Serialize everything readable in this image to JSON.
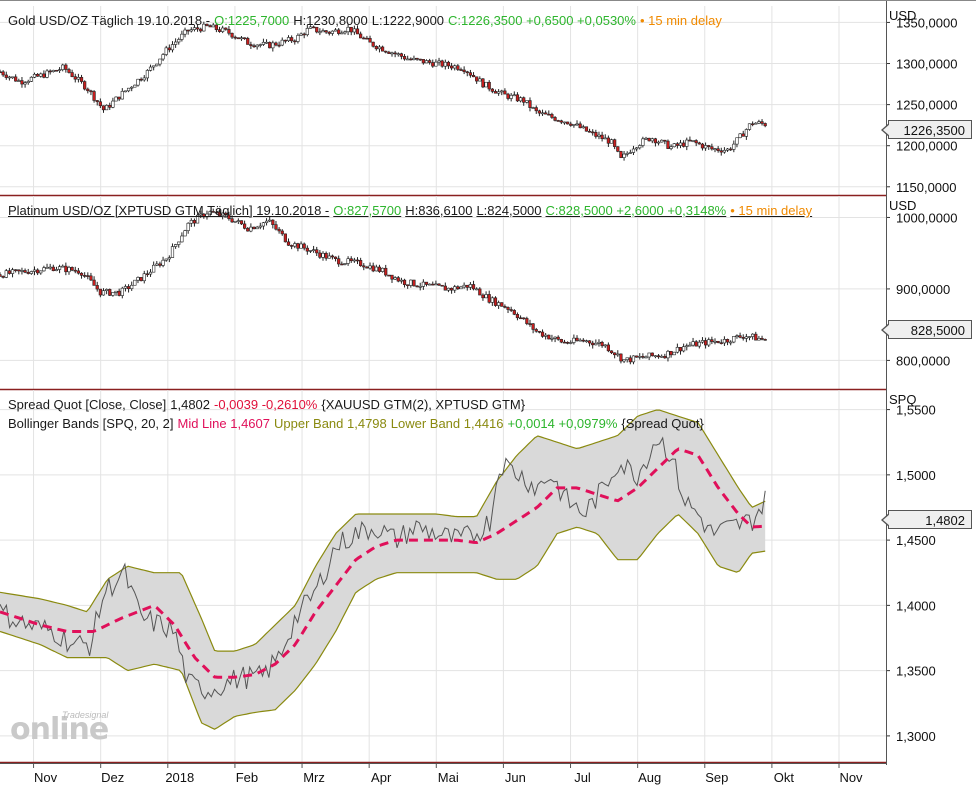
{
  "chart_data": [
    {
      "type": "candlestick",
      "panel": "gold",
      "header": {
        "name": "Gold USD/OZ Täglich 19.10.2018 -",
        "open": "O:1225,7000",
        "high": "H:1230,8000",
        "low": "L:1222,9000",
        "close": "C:1226,3500 +0,6500 +0,0530%",
        "delay": "• 15 min delay"
      },
      "unit": "USD",
      "ylim": [
        1140,
        1370
      ],
      "yticks": [
        "1350,0000",
        "1300,0000",
        "1250,0000",
        "1200,0000",
        "1150,0000"
      ],
      "ytick_values": [
        1350,
        1300,
        1250,
        1200,
        1150
      ],
      "last_value": "1226,3500",
      "last": 1226.35,
      "anchors": [
        [
          0,
          1290
        ],
        [
          0.3,
          1278
        ],
        [
          0.6,
          1285
        ],
        [
          0.95,
          1295
        ],
        [
          1.3,
          1270
        ],
        [
          1.55,
          1243
        ],
        [
          1.8,
          1262
        ],
        [
          2.2,
          1290
        ],
        [
          2.5,
          1318
        ],
        [
          2.8,
          1340
        ],
        [
          3.1,
          1345
        ],
        [
          3.4,
          1338
        ],
        [
          3.7,
          1325
        ],
        [
          4.0,
          1322
        ],
        [
          4.4,
          1330
        ],
        [
          4.6,
          1342
        ],
        [
          4.9,
          1338
        ],
        [
          5.2,
          1343
        ],
        [
          5.5,
          1325
        ],
        [
          5.8,
          1315
        ],
        [
          6.1,
          1305
        ],
        [
          6.5,
          1300
        ],
        [
          6.9,
          1295
        ],
        [
          7.2,
          1275
        ],
        [
          7.5,
          1262
        ],
        [
          7.8,
          1255
        ],
        [
          8.0,
          1240
        ],
        [
          8.5,
          1228
        ],
        [
          8.8,
          1215
        ],
        [
          9.1,
          1205
        ],
        [
          9.25,
          1183
        ],
        [
          9.45,
          1200
        ],
        [
          9.7,
          1210
        ],
        [
          10.0,
          1198
        ],
        [
          10.3,
          1205
        ],
        [
          10.6,
          1196
        ],
        [
          10.85,
          1195
        ],
        [
          11.0,
          1208
        ],
        [
          11.2,
          1228
        ],
        [
          11.4,
          1226.35
        ]
      ]
    },
    {
      "type": "candlestick",
      "panel": "platinum",
      "header": {
        "name": "Platinum USD/OZ [XPTUSD GTM Täglich] 19.10.2018 -",
        "open": "O:827,5700",
        "high": "H:836,6100",
        "low": "L:824,5000",
        "close": "C:828,5000 +2,6000 +0,3148%",
        "delay": "• 15 min delay"
      },
      "unit": "USD",
      "ylim": [
        760,
        1030
      ],
      "yticks": [
        "1000,0000",
        "900,0000",
        "800,0000"
      ],
      "ytick_values": [
        1000,
        900,
        800
      ],
      "last_value": "828,5000",
      "last": 828.5,
      "anchors": [
        [
          0,
          920
        ],
        [
          0.4,
          925
        ],
        [
          0.8,
          930
        ],
        [
          1.2,
          925
        ],
        [
          1.5,
          895
        ],
        [
          1.8,
          895
        ],
        [
          2.1,
          915
        ],
        [
          2.5,
          945
        ],
        [
          2.8,
          990
        ],
        [
          3.1,
          1008
        ],
        [
          3.4,
          1000
        ],
        [
          3.7,
          985
        ],
        [
          4.0,
          995
        ],
        [
          4.3,
          965
        ],
        [
          4.6,
          955
        ],
        [
          5.0,
          940
        ],
        [
          5.4,
          935
        ],
        [
          5.7,
          925
        ],
        [
          6.0,
          910
        ],
        [
          6.3,
          905
        ],
        [
          6.7,
          900
        ],
        [
          7.0,
          905
        ],
        [
          7.3,
          885
        ],
        [
          7.6,
          872
        ],
        [
          8.0,
          840
        ],
        [
          8.4,
          825
        ],
        [
          8.7,
          828
        ],
        [
          9.0,
          822
        ],
        [
          9.3,
          800
        ],
        [
          9.6,
          805
        ],
        [
          9.9,
          808
        ],
        [
          10.2,
          820
        ],
        [
          10.5,
          825
        ],
        [
          10.8,
          828
        ],
        [
          11.1,
          835
        ],
        [
          11.4,
          828.5
        ]
      ]
    },
    {
      "type": "line",
      "panel": "spread",
      "header1": {
        "name": "Spread Quot [Close, Close]",
        "value": "1,4802",
        "change": "-0,0039 -0,2610%",
        "source": "{XAUUSD GTM(2), XPTUSD GTM}"
      },
      "header2": {
        "name": "Bollinger Bands [SPQ, 20, 2]",
        "mid": "Mid Line 1,4607",
        "upper": "Upper Band 1,4798",
        "lower": "Lower Band 1,4416",
        "change": "+0,0014 +0,0979%",
        "source": "{Spread Quot}"
      },
      "unit": "SPQ",
      "ylim": [
        1.28,
        1.565
      ],
      "yticks": [
        "1,5500",
        "1,5000",
        "1,4500",
        "1,4000",
        "1,3500",
        "1,3000"
      ],
      "ytick_values": [
        1.55,
        1.5,
        1.45,
        1.4,
        1.35,
        1.3
      ],
      "last_value": "1,4802",
      "last": 1.4802,
      "series": [
        {
          "name": "Spread Quot",
          "color": "#555555",
          "anchors": [
            [
              0,
              1.395
            ],
            [
              0.4,
              1.385
            ],
            [
              0.8,
              1.38
            ],
            [
              1.1,
              1.37
            ],
            [
              1.35,
              1.37
            ],
            [
              1.55,
              1.41
            ],
            [
              1.85,
              1.425
            ],
            [
              2.1,
              1.39
            ],
            [
              2.4,
              1.385
            ],
            [
              2.6,
              1.38
            ],
            [
              2.8,
              1.34
            ],
            [
              3.1,
              1.335
            ],
            [
              3.35,
              1.34
            ],
            [
              3.6,
              1.345
            ],
            [
              3.9,
              1.345
            ],
            [
              4.15,
              1.36
            ],
            [
              4.4,
              1.39
            ],
            [
              4.7,
              1.41
            ],
            [
              5.0,
              1.445
            ],
            [
              5.3,
              1.455
            ],
            [
              5.6,
              1.46
            ],
            [
              5.9,
              1.45
            ],
            [
              6.2,
              1.46
            ],
            [
              6.5,
              1.455
            ],
            [
              6.8,
              1.45
            ],
            [
              7.1,
              1.455
            ],
            [
              7.3,
              1.465
            ],
            [
              7.45,
              1.51
            ],
            [
              7.75,
              1.5
            ],
            [
              8.0,
              1.49
            ],
            [
              8.2,
              1.5
            ],
            [
              8.45,
              1.48
            ],
            [
              8.7,
              1.47
            ],
            [
              9.0,
              1.49
            ],
            [
              9.2,
              1.51
            ],
            [
              9.5,
              1.5
            ],
            [
              9.8,
              1.53
            ],
            [
              10.0,
              1.515
            ],
            [
              10.2,
              1.48
            ],
            [
              10.4,
              1.47
            ],
            [
              10.6,
              1.455
            ],
            [
              10.9,
              1.46
            ],
            [
              11.2,
              1.465
            ],
            [
              11.4,
              1.4802
            ]
          ]
        },
        {
          "name": "Mid Line",
          "color": "#e0105a",
          "anchors": [
            [
              0,
              1.395
            ],
            [
              0.6,
              1.385
            ],
            [
              1.0,
              1.38
            ],
            [
              1.4,
              1.38
            ],
            [
              1.8,
              1.39
            ],
            [
              2.3,
              1.4
            ],
            [
              2.6,
              1.385
            ],
            [
              2.9,
              1.36
            ],
            [
              3.2,
              1.345
            ],
            [
              3.5,
              1.345
            ],
            [
              3.8,
              1.347
            ],
            [
              4.1,
              1.355
            ],
            [
              4.4,
              1.37
            ],
            [
              4.7,
              1.395
            ],
            [
              5.0,
              1.415
            ],
            [
              5.3,
              1.435
            ],
            [
              5.6,
              1.445
            ],
            [
              5.9,
              1.45
            ],
            [
              6.2,
              1.45
            ],
            [
              6.5,
              1.45
            ],
            [
              6.8,
              1.45
            ],
            [
              7.1,
              1.448
            ],
            [
              7.4,
              1.455
            ],
            [
              7.7,
              1.465
            ],
            [
              8.0,
              1.475
            ],
            [
              8.3,
              1.49
            ],
            [
              8.6,
              1.49
            ],
            [
              8.9,
              1.485
            ],
            [
              9.2,
              1.48
            ],
            [
              9.5,
              1.49
            ],
            [
              9.8,
              1.505
            ],
            [
              10.1,
              1.52
            ],
            [
              10.4,
              1.515
            ],
            [
              10.7,
              1.49
            ],
            [
              11.0,
              1.47
            ],
            [
              11.2,
              1.46
            ],
            [
              11.4,
              1.4607
            ]
          ]
        },
        {
          "name": "Upper Band",
          "color": "#8a8a10",
          "anchors": [
            [
              0,
              1.41
            ],
            [
              0.6,
              1.405
            ],
            [
              1.0,
              1.4
            ],
            [
              1.3,
              1.395
            ],
            [
              1.6,
              1.42
            ],
            [
              1.9,
              1.43
            ],
            [
              2.3,
              1.425
            ],
            [
              2.7,
              1.425
            ],
            [
              3.0,
              1.39
            ],
            [
              3.2,
              1.365
            ],
            [
              3.5,
              1.365
            ],
            [
              3.8,
              1.37
            ],
            [
              4.1,
              1.385
            ],
            [
              4.4,
              1.4
            ],
            [
              4.7,
              1.43
            ],
            [
              5.0,
              1.455
            ],
            [
              5.3,
              1.47
            ],
            [
              5.6,
              1.47
            ],
            [
              5.9,
              1.47
            ],
            [
              6.2,
              1.47
            ],
            [
              6.5,
              1.47
            ],
            [
              6.8,
              1.468
            ],
            [
              7.1,
              1.468
            ],
            [
              7.4,
              1.495
            ],
            [
              7.7,
              1.515
            ],
            [
              8.0,
              1.53
            ],
            [
              8.3,
              1.525
            ],
            [
              8.6,
              1.52
            ],
            [
              8.9,
              1.525
            ],
            [
              9.2,
              1.53
            ],
            [
              9.5,
              1.545
            ],
            [
              9.8,
              1.55
            ],
            [
              10.1,
              1.545
            ],
            [
              10.4,
              1.54
            ],
            [
              10.7,
              1.515
            ],
            [
              11.0,
              1.49
            ],
            [
              11.2,
              1.475
            ],
            [
              11.4,
              1.4798
            ]
          ]
        },
        {
          "name": "Lower Band",
          "color": "#8a8a10",
          "anchors": [
            [
              0,
              1.38
            ],
            [
              0.6,
              1.37
            ],
            [
              1.0,
              1.36
            ],
            [
              1.3,
              1.36
            ],
            [
              1.6,
              1.36
            ],
            [
              1.9,
              1.35
            ],
            [
              2.3,
              1.355
            ],
            [
              2.7,
              1.35
            ],
            [
              3.0,
              1.31
            ],
            [
              3.2,
              1.305
            ],
            [
              3.5,
              1.315
            ],
            [
              3.8,
              1.318
            ],
            [
              4.1,
              1.32
            ],
            [
              4.4,
              1.335
            ],
            [
              4.7,
              1.355
            ],
            [
              5.0,
              1.38
            ],
            [
              5.3,
              1.41
            ],
            [
              5.6,
              1.42
            ],
            [
              5.9,
              1.425
            ],
            [
              6.2,
              1.425
            ],
            [
              6.5,
              1.425
            ],
            [
              6.8,
              1.425
            ],
            [
              7.1,
              1.425
            ],
            [
              7.4,
              1.42
            ],
            [
              7.7,
              1.42
            ],
            [
              8.0,
              1.43
            ],
            [
              8.3,
              1.455
            ],
            [
              8.6,
              1.46
            ],
            [
              8.9,
              1.455
            ],
            [
              9.2,
              1.435
            ],
            [
              9.5,
              1.435
            ],
            [
              9.8,
              1.455
            ],
            [
              10.1,
              1.47
            ],
            [
              10.4,
              1.455
            ],
            [
              10.7,
              1.43
            ],
            [
              11.0,
              1.425
            ],
            [
              11.2,
              1.44
            ],
            [
              11.4,
              1.4416
            ]
          ]
        }
      ]
    }
  ],
  "xaxis": {
    "labels": [
      "Nov",
      "Dez",
      "2018",
      "Feb",
      "Mrz",
      "Apr",
      "Mai",
      "Jun",
      "Jul",
      "Aug",
      "Sep",
      "Okt",
      "Nov"
    ],
    "positions": [
      0.5,
      1.5,
      2.5,
      3.5,
      4.5,
      5.5,
      6.5,
      7.5,
      8.5,
      9.5,
      10.5,
      11.5,
      12.5
    ]
  },
  "colors": {
    "bull": "#ffffff",
    "bear": "#c81e1e",
    "wick": "#222222",
    "band_fill": "#d9d9d9",
    "grid": "#e3e3e3"
  },
  "logo": {
    "text": "online",
    "brand": "Tradesignal"
  }
}
